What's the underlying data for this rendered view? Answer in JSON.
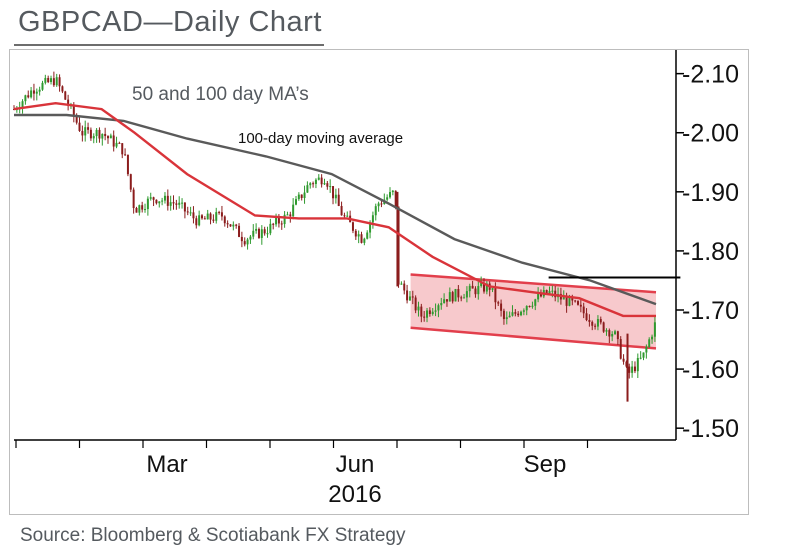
{
  "title": "GBPCAD—Daily Chart",
  "source": "Source: Bloomberg & Scotiabank FX Strategy",
  "chart_data": {
    "type": "candlestick",
    "title": "GBPCAD—Daily Chart",
    "xlabel": "2016",
    "ylabel": "",
    "x_ticks": [
      "Mar",
      "Jun",
      "Sep"
    ],
    "y_ticks": [
      "2.10",
      "2.00",
      "1.90",
      "1.80",
      "1.70",
      "1.60",
      "1.50"
    ],
    "ylim": [
      1.48,
      2.14
    ],
    "x_range": [
      "2016-01-01",
      "2016-10-20"
    ],
    "grid": false,
    "colors": {
      "up": "#2f9a2f",
      "down": "#8b1c1c",
      "ma_red": "#d9343a",
      "ma_gray": "#5a5a5a",
      "channel_fill": "#f7c9cc",
      "channel_edge": "#e23f4c",
      "resistance": "#000000"
    },
    "annotations": [
      "50 and 100 day MA’s",
      "100-day  moving average"
    ],
    "close_series": {
      "name": "",
      "points": [
        [
          "2016-01-01",
          2.04
        ],
        [
          "2016-01-10",
          2.075
        ],
        [
          "2016-01-20",
          2.09
        ],
        [
          "2016-02-01",
          2.0
        ],
        [
          "2016-02-10",
          2.0
        ],
        [
          "2016-02-20",
          1.97
        ],
        [
          "2016-02-25",
          1.87
        ],
        [
          "2016-03-05",
          1.89
        ],
        [
          "2016-03-15",
          1.88
        ],
        [
          "2016-03-25",
          1.85
        ],
        [
          "2016-04-05",
          1.86
        ],
        [
          "2016-04-15",
          1.82
        ],
        [
          "2016-04-25",
          1.835
        ],
        [
          "2016-05-05",
          1.86
        ],
        [
          "2016-05-15",
          1.915
        ],
        [
          "2016-05-22",
          1.925
        ],
        [
          "2016-05-30",
          1.86
        ],
        [
          "2016-06-08",
          1.82
        ],
        [
          "2016-06-15",
          1.88
        ],
        [
          "2016-06-23",
          1.9
        ],
        [
          "2016-06-24",
          1.75
        ],
        [
          "2016-07-05",
          1.69
        ],
        [
          "2016-07-15",
          1.72
        ],
        [
          "2016-07-25",
          1.73
        ],
        [
          "2016-08-05",
          1.74
        ],
        [
          "2016-08-12",
          1.68
        ],
        [
          "2016-08-22",
          1.71
        ],
        [
          "2016-09-01",
          1.73
        ],
        [
          "2016-09-12",
          1.71
        ],
        [
          "2016-09-22",
          1.68
        ],
        [
          "2016-10-01",
          1.66
        ],
        [
          "2016-10-07",
          1.59
        ],
        [
          "2016-10-14",
          1.62
        ],
        [
          "2016-10-20",
          1.68
        ]
      ]
    },
    "ma50": {
      "name": "",
      "points": [
        [
          "2016-01-01",
          2.04
        ],
        [
          "2016-01-20",
          2.05
        ],
        [
          "2016-02-10",
          2.04
        ],
        [
          "2016-02-25",
          2.0
        ],
        [
          "2016-03-20",
          1.93
        ],
        [
          "2016-04-20",
          1.86
        ],
        [
          "2016-05-10",
          1.855
        ],
        [
          "2016-06-01",
          1.855
        ],
        [
          "2016-06-20",
          1.84
        ],
        [
          "2016-07-10",
          1.79
        ],
        [
          "2016-08-05",
          1.74
        ],
        [
          "2016-08-25",
          1.73
        ],
        [
          "2016-09-15",
          1.72
        ],
        [
          "2016-10-05",
          1.69
        ],
        [
          "2016-10-20",
          1.69
        ]
      ]
    },
    "ma100": {
      "name": "",
      "points": [
        [
          "2016-01-01",
          2.03
        ],
        [
          "2016-01-25",
          2.03
        ],
        [
          "2016-02-20",
          2.02
        ],
        [
          "2016-03-20",
          1.99
        ],
        [
          "2016-04-25",
          1.96
        ],
        [
          "2016-05-25",
          1.93
        ],
        [
          "2016-06-20",
          1.88
        ],
        [
          "2016-07-20",
          1.82
        ],
        [
          "2016-08-20",
          1.78
        ],
        [
          "2016-09-20",
          1.75
        ],
        [
          "2016-10-20",
          1.71
        ]
      ]
    },
    "channel": {
      "upper": [
        [
          "2016-06-30",
          1.76
        ],
        [
          "2016-10-20",
          1.73
        ]
      ],
      "lower": [
        [
          "2016-06-30",
          1.67
        ],
        [
          "2016-10-20",
          1.635
        ]
      ]
    },
    "resistance_line": {
      "level": 1.755,
      "from": "2016-09-01",
      "to": "2016-10-22"
    }
  }
}
